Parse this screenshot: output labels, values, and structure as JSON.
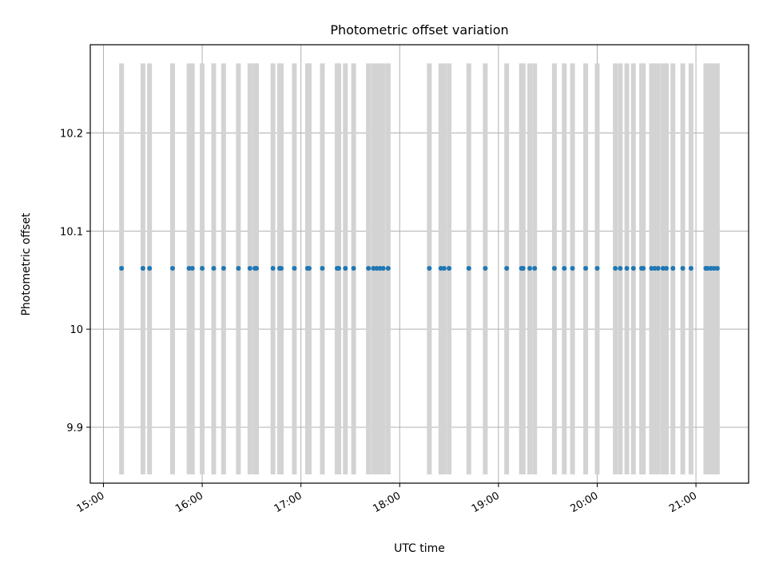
{
  "chart_data": {
    "type": "scatter",
    "title": "Photometric offset variation",
    "xlabel": "UTC time",
    "ylabel": "Photometric offset",
    "x_format": "HH:MM",
    "xlim": [
      "14:52",
      "21:32"
    ],
    "ylim": [
      9.843,
      10.29
    ],
    "x_ticks": [
      "15:00",
      "16:00",
      "17:00",
      "18:00",
      "19:00",
      "20:00",
      "21:00"
    ],
    "y_ticks": [
      9.9,
      10.0,
      10.1,
      10.2
    ],
    "grid": true,
    "marker_color": "#1f77b4",
    "errorbar_color": "#d3d3d3",
    "series": [
      {
        "x": [
          "15:11",
          "15:24",
          "15:28",
          "15:42",
          "15:52",
          "15:54",
          "16:00",
          "16:07",
          "16:13",
          "16:22",
          "16:29",
          "16:32",
          "16:33",
          "16:43",
          "16:47",
          "16:48",
          "16:56",
          "17:04",
          "17:05",
          "17:13",
          "17:22",
          "17:23",
          "17:27",
          "17:32",
          "17:41",
          "17:44",
          "17:46",
          "17:48",
          "17:50",
          "17:53",
          "18:18",
          "18:25",
          "18:27",
          "18:30",
          "18:42",
          "18:52",
          "19:05",
          "19:14",
          "19:15",
          "19:19",
          "19:22",
          "19:34",
          "19:40",
          "19:45",
          "19:53",
          "20:00",
          "20:11",
          "20:14",
          "20:18",
          "20:22",
          "20:27",
          "20:28",
          "20:33",
          "20:35",
          "20:37",
          "20:40",
          "20:42",
          "20:46",
          "20:52",
          "20:57",
          "21:06",
          "21:07",
          "21:09",
          "21:11",
          "21:13"
        ],
        "y": [
          10.062,
          10.062,
          10.062,
          10.062,
          10.062,
          10.062,
          10.062,
          10.062,
          10.062,
          10.062,
          10.062,
          10.062,
          10.062,
          10.062,
          10.062,
          10.062,
          10.062,
          10.062,
          10.062,
          10.062,
          10.062,
          10.062,
          10.062,
          10.062,
          10.062,
          10.062,
          10.062,
          10.062,
          10.062,
          10.062,
          10.062,
          10.062,
          10.062,
          10.062,
          10.062,
          10.062,
          10.062,
          10.062,
          10.062,
          10.062,
          10.062,
          10.062,
          10.062,
          10.062,
          10.062,
          10.062,
          10.062,
          10.062,
          10.062,
          10.062,
          10.062,
          10.062,
          10.062,
          10.062,
          10.062,
          10.062,
          10.062,
          10.062,
          10.062,
          10.062,
          10.062,
          10.062,
          10.062,
          10.062,
          10.062
        ],
        "yerr_low": 9.852,
        "yerr_high": 10.271
      }
    ]
  }
}
